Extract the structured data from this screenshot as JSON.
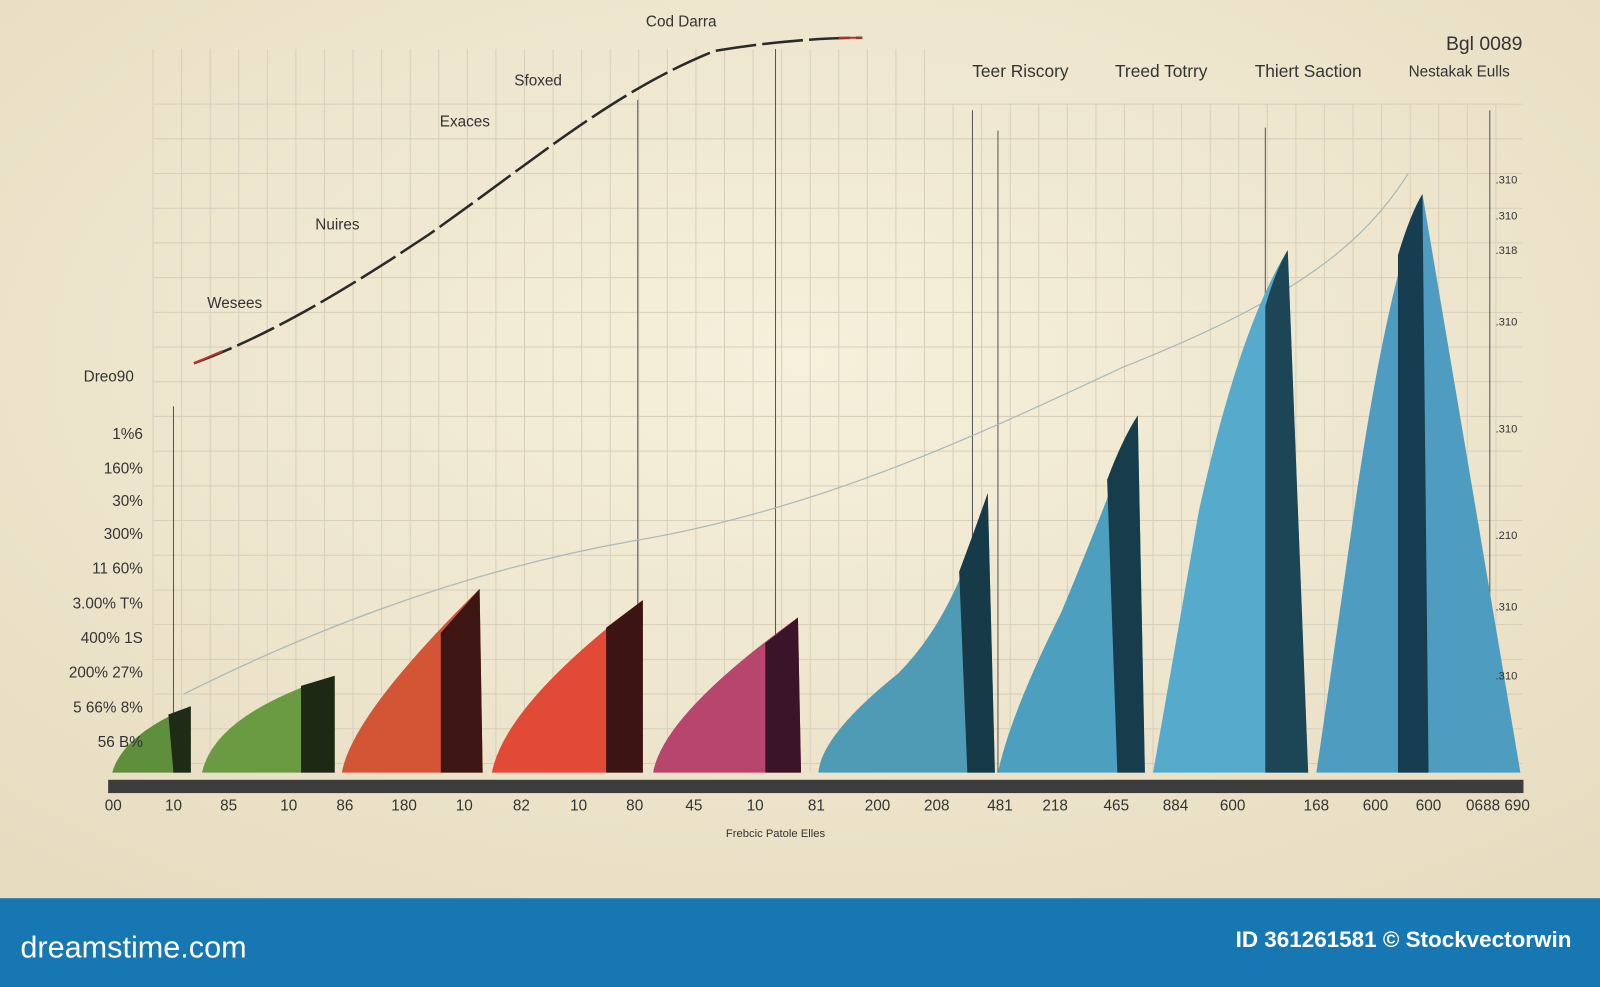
{
  "curve_labels": [
    "Cod Darra",
    "Sfoxed",
    "Exaces",
    "Nuires",
    "Wesees",
    "Dreo90"
  ],
  "header": {
    "id": "Bgl 0089",
    "columns": [
      "Teer Riscory",
      "Treed Totrry",
      "Thiert Saction",
      "Nestakak Eulls"
    ]
  },
  "left_axis": [
    "1%6",
    "160%",
    "30%",
    "300%",
    "11 60%",
    "3.00% T%",
    "400% 1S",
    "200% 27%",
    "5 66% 8%",
    "56 B%"
  ],
  "right_axis": [
    ".310",
    ".310",
    ".318",
    ".310",
    ".310",
    ".210",
    ".310",
    ".310"
  ],
  "x_axis": [
    "00",
    "10",
    "85",
    "10",
    "86",
    "180",
    "10",
    "82",
    "10",
    "80",
    "45",
    "10",
    "81",
    "200",
    "208",
    "481",
    "218",
    "465",
    "884",
    "600",
    "168",
    "600",
    "600",
    "0688 690"
  ],
  "x_axis_title": "Frebcic Patole Elles",
  "banner": {
    "logo": "dreamstime.com",
    "credit": "ID 361261581 © Stockvectorwin"
  }
}
